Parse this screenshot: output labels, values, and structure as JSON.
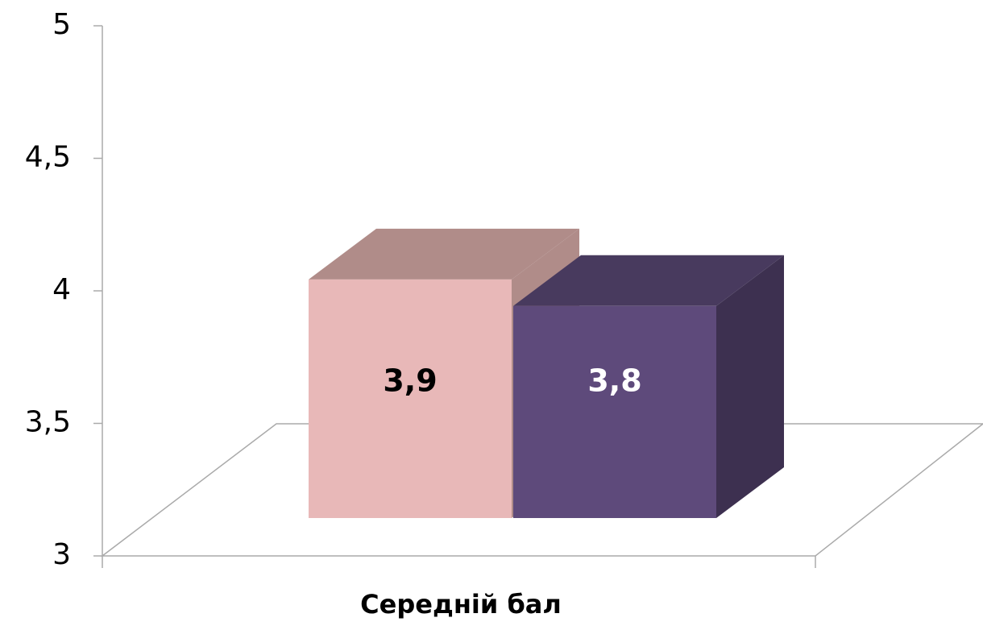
{
  "chart_data": {
    "type": "bar3d",
    "categories": [
      "Середній бал"
    ],
    "series": [
      {
        "color": "#e8b8b8",
        "top_color": "#b08c89",
        "side_color": "#b08c89",
        "label_color": "#000000",
        "values": [
          3.9
        ],
        "value_labels": [
          "3,9"
        ]
      },
      {
        "color": "#5e4a7b",
        "top_color": "#483a5e",
        "side_color": "#3d3050",
        "label_color": "#ffffff",
        "values": [
          3.8
        ],
        "value_labels": [
          "3,8"
        ]
      }
    ],
    "ylim": [
      3,
      5
    ],
    "yticks": [
      3,
      {
        "value": 3.5,
        "label": "3,5"
      },
      4,
      {
        "value": 4.5,
        "label": "4,5"
      },
      5
    ]
  }
}
